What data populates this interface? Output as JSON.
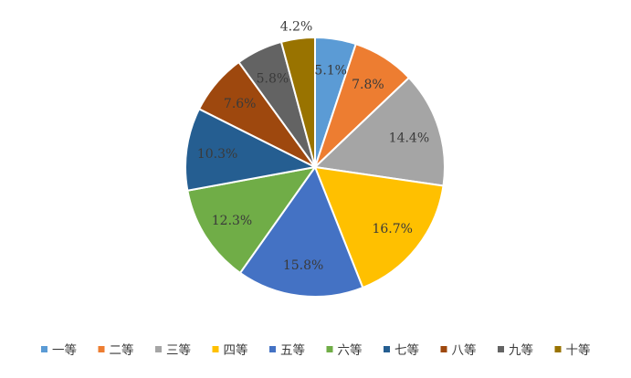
{
  "chart_data": {
    "type": "pie",
    "title": "",
    "categories": [
      "一等",
      "二等",
      "三等",
      "四等",
      "五等",
      "六等",
      "七等",
      "八等",
      "九等",
      "十等"
    ],
    "values": [
      5.1,
      7.8,
      14.4,
      16.7,
      15.8,
      12.3,
      10.3,
      7.6,
      5.8,
      4.2
    ],
    "value_labels": [
      "5.1%",
      "7.8%",
      "14.4%",
      "16.7%",
      "15.8%",
      "12.3%",
      "10.3%",
      "7.6%",
      "5.8%",
      "4.2%"
    ],
    "colors": [
      "#5B9BD5",
      "#ED7D31",
      "#A5A5A5",
      "#FFC000",
      "#4472C4",
      "#70AD47",
      "#255E91",
      "#9E480E",
      "#636363",
      "#997300"
    ],
    "start_angle_deg": 0,
    "direction": "clockwise",
    "legend_position": "bottom"
  }
}
